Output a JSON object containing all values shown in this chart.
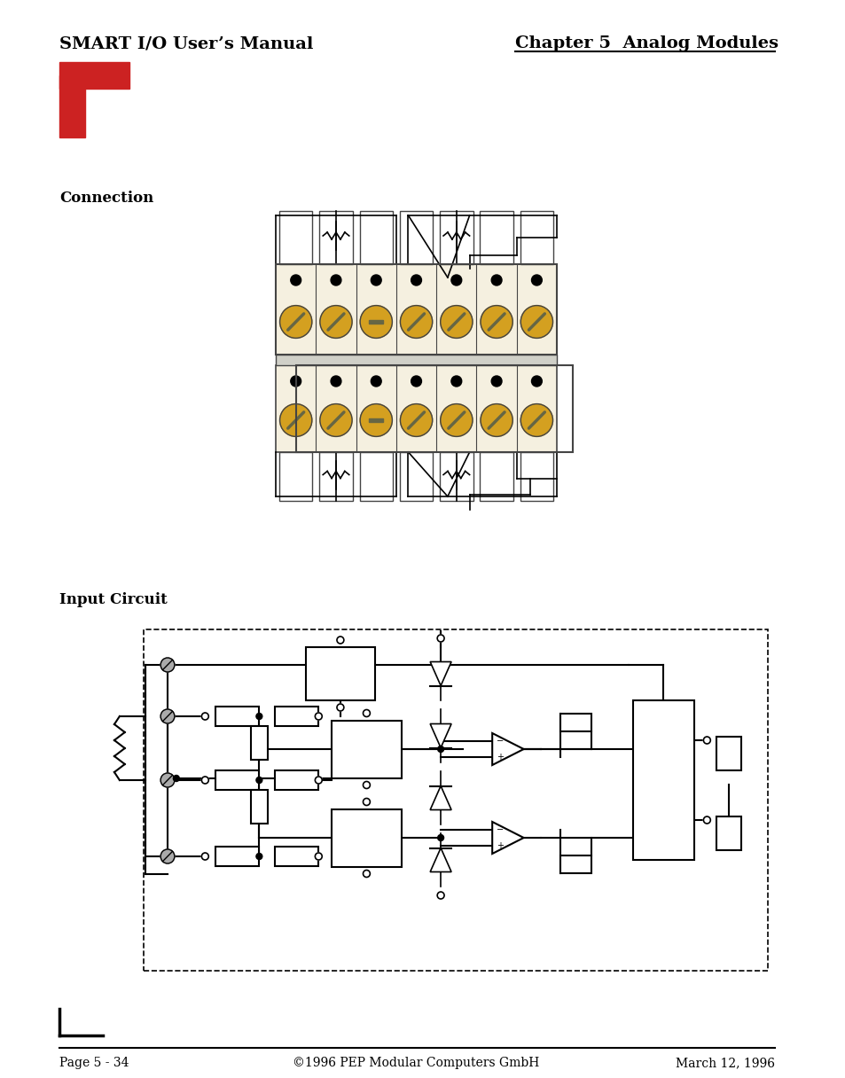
{
  "title_left": "SMART I/O User’s Manual",
  "title_right": "Chapter 5  Analog Modules",
  "footer_left": "Page 5 - 34",
  "footer_center": "©1996 PEP Modular Computers GmbH",
  "footer_right": "March 12, 1996",
  "section1": "Connection",
  "section2": "Input Circuit",
  "bg_color": "#ffffff",
  "text_color": "#000000",
  "red_color": "#cc2222",
  "gold_color": "#d4a020",
  "cream_color": "#f5f0e0",
  "screw_slot_color": "#666644",
  "connector_outline": "#444444"
}
